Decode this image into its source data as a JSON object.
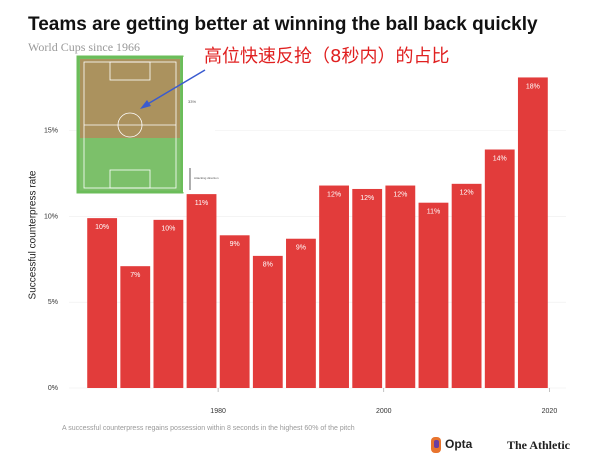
{
  "chart_data": {
    "type": "bar",
    "title": "Teams are getting better at winning the ball back quickly",
    "subtitle": "World Cups since 1966",
    "y_label": "Successful counterpress rate",
    "x": [
      1966,
      1970,
      1974,
      1978,
      1982,
      1986,
      1990,
      1994,
      1998,
      2002,
      2006,
      2010,
      2014,
      2018
    ],
    "values": [
      9.9,
      7.1,
      9.8,
      11.3,
      8.9,
      7.7,
      8.7,
      11.8,
      11.6,
      11.8,
      10.8,
      11.9,
      13.9,
      18.1
    ],
    "value_labels": [
      "10%",
      "7%",
      "10%",
      "11%",
      "9%",
      "8%",
      "9%",
      "12%",
      "12%",
      "12%",
      "11%",
      "12%",
      "14%",
      "18%"
    ],
    "color": "#e23c3b",
    "xlim": [
      1962,
      2022
    ],
    "xticks": [
      1980,
      2000,
      2020
    ],
    "ylim": [
      0,
      19
    ],
    "yticks": [
      {
        "value": 0,
        "label": "0%"
      },
      {
        "value": 5,
        "label": "5%"
      },
      {
        "value": 10,
        "label": "10%"
      },
      {
        "value": 15,
        "label": "15%"
      }
    ],
    "grid": true,
    "note": "A successful counterpress regains possession within 8 seconds in the highest 60% of the pitch",
    "annotation": "高位快速反抢（8秒内）的占比",
    "inset_labels": [
      "33%",
      "Attacking direction"
    ],
    "logos": [
      "Opta",
      "The Athletic"
    ]
  }
}
